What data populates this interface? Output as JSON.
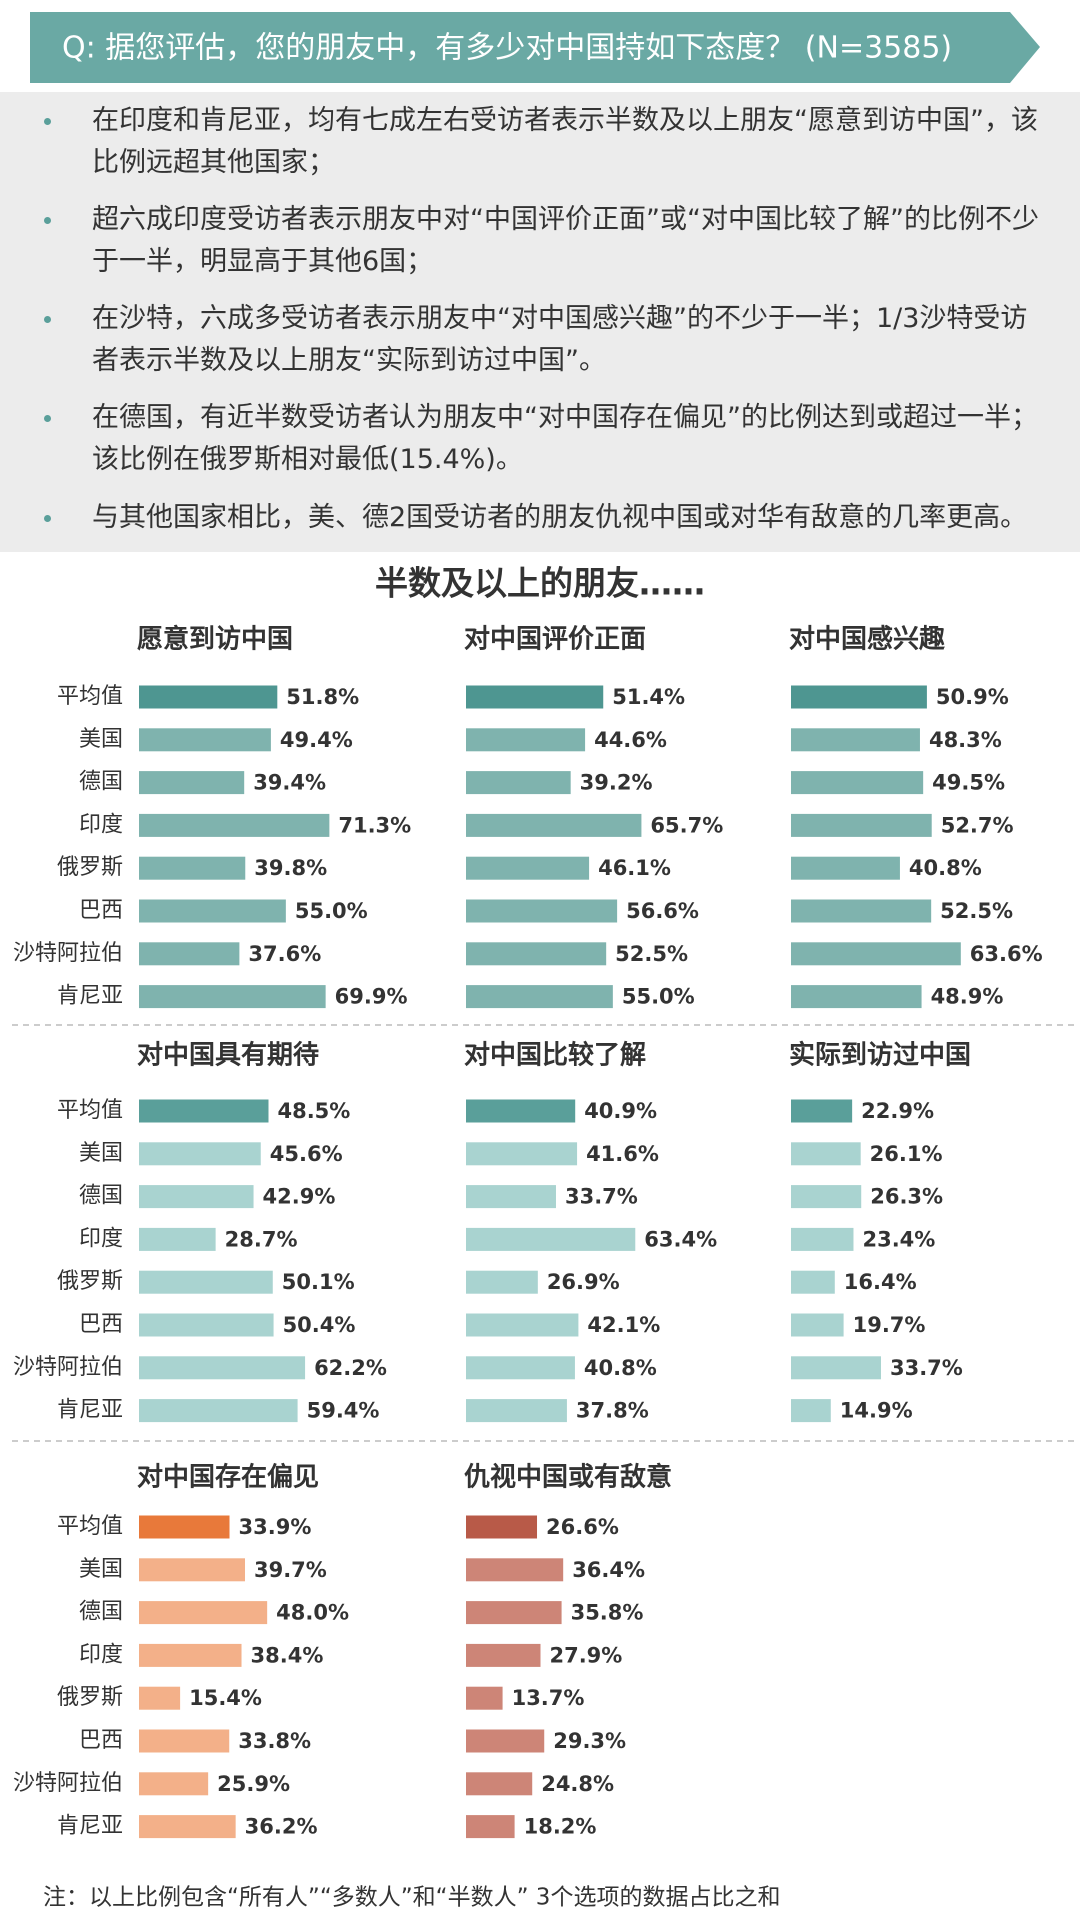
{
  "header": {
    "question": "Q: 据您评估，您的朋友中，有多少对中国持如下态度？ (N=3585)"
  },
  "bullets": [
    "在印度和肯尼亚，均有七成左右受访者表示半数及以上朋友“愿意到访中国”，该比例远超其他国家；",
    "超六成印度受访者表示朋友中对“中国评价正面”或“对中国比较了解”的比例不少于一半，明显高于其他6国；",
    "在沙特，六成多受访者表示朋友中“对中国感兴趣”的不少于一半；1/3沙特受访者表示半数及以上朋友“实际到访过中国”。",
    "在德国，有近半数受访者认为朋友中“对中国存在偏见”的比例达到或超过一半；该比例在俄罗斯相对最低(15.4%)。",
    "与其他国家相比，美、德2国受访者的朋友仇视中国或对华有敌意的几率更高。"
  ],
  "section_title": "半数及以上的朋友……",
  "note": "注：以上比例包含“所有人”“多数人”和“半数人” 3个选项的数据占比之和",
  "chart_data": [
    {
      "type": "bar",
      "title": "愿意到访中国",
      "categories": [
        "平均值",
        "美国",
        "德国",
        "印度",
        "俄罗斯",
        "巴西",
        "沙特阿拉伯",
        "肯尼亚"
      ],
      "values": [
        51.8,
        49.4,
        39.4,
        71.3,
        39.8,
        55.0,
        37.6,
        69.9
      ],
      "value_labels": [
        "51.8%",
        "49.4%",
        "39.4%",
        "71.3%",
        "39.8%",
        "55.0%",
        "37.6%",
        "69.9%"
      ],
      "color": "#7fb3ae",
      "highlight_color": "#4e9691"
    },
    {
      "type": "bar",
      "title": "对中国评价正面",
      "values": [
        51.4,
        44.6,
        39.2,
        65.7,
        46.1,
        56.6,
        52.5,
        55.0
      ],
      "value_labels": [
        "51.4%",
        "44.6%",
        "39.2%",
        "65.7%",
        "46.1%",
        "56.6%",
        "52.5%",
        "55.0%"
      ],
      "color": "#7fb3ae",
      "highlight_color": "#4e9691"
    },
    {
      "type": "bar",
      "title": "对中国感兴趣",
      "values": [
        50.9,
        48.3,
        49.5,
        52.7,
        40.8,
        52.5,
        63.6,
        48.9
      ],
      "value_labels": [
        "50.9%",
        "48.3%",
        "49.5%",
        "52.7%",
        "40.8%",
        "52.5%",
        "63.6%",
        "48.9%"
      ],
      "color": "#7fb3ae",
      "highlight_color": "#4e9691"
    },
    {
      "type": "bar",
      "title": "对中国具有期待",
      "categories": [
        "平均值",
        "美国",
        "德国",
        "印度",
        "俄罗斯",
        "巴西",
        "沙特阿拉伯",
        "肯尼亚"
      ],
      "values": [
        48.5,
        45.6,
        42.9,
        28.7,
        50.1,
        50.4,
        62.2,
        59.4
      ],
      "value_labels": [
        "48.5%",
        "45.6%",
        "42.9%",
        "28.7%",
        "50.1%",
        "50.4%",
        "62.2%",
        "59.4%"
      ],
      "color": "#a9d3d0",
      "highlight_color": "#5a9f9a"
    },
    {
      "type": "bar",
      "title": "对中国比较了解",
      "values": [
        40.9,
        41.6,
        33.7,
        63.4,
        26.9,
        42.1,
        40.8,
        37.8
      ],
      "value_labels": [
        "40.9%",
        "41.6%",
        "33.7%",
        "63.4%",
        "26.9%",
        "42.1%",
        "40.8%",
        "37.8%"
      ],
      "color": "#a9d3d0",
      "highlight_color": "#5a9f9a"
    },
    {
      "type": "bar",
      "title": "实际到访过中国",
      "values": [
        22.9,
        26.1,
        26.3,
        23.4,
        16.4,
        19.7,
        33.7,
        14.9
      ],
      "value_labels": [
        "22.9%",
        "26.1%",
        "26.3%",
        "23.4%",
        "16.4%",
        "19.7%",
        "33.7%",
        "14.9%"
      ],
      "color": "#a9d3d0",
      "highlight_color": "#5a9f9a"
    },
    {
      "type": "bar",
      "title": "对中国存在偏见",
      "categories": [
        "平均值",
        "美国",
        "德国",
        "印度",
        "俄罗斯",
        "巴西",
        "沙特阿拉伯",
        "肯尼亚"
      ],
      "values": [
        33.9,
        39.7,
        48.0,
        38.4,
        15.4,
        33.8,
        25.9,
        36.2
      ],
      "value_labels": [
        "33.9%",
        "39.7%",
        "48.0%",
        "38.4%",
        "15.4%",
        "33.8%",
        "25.9%",
        "36.2%"
      ],
      "color": "#f3b089",
      "highlight_color": "#e8793a"
    },
    {
      "type": "bar",
      "title": "仇视中国或有敌意",
      "values": [
        26.6,
        36.4,
        35.8,
        27.9,
        13.7,
        29.3,
        24.8,
        18.2
      ],
      "value_labels": [
        "26.6%",
        "36.4%",
        "35.8%",
        "27.9%",
        "13.7%",
        "29.3%",
        "24.8%",
        "18.2%"
      ],
      "color": "#cd8577",
      "highlight_color": "#b85a48"
    }
  ]
}
